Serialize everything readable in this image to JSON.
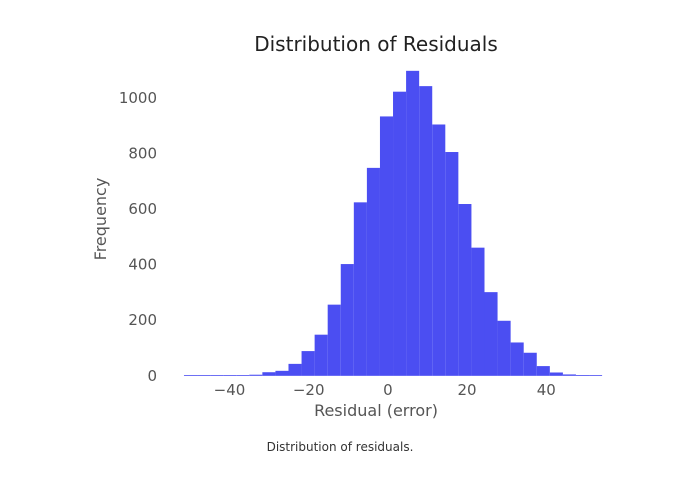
{
  "caption": "Distribution of residuals.",
  "colors": {
    "bar": "#4b4ef2",
    "text": "#444444",
    "axis_text": "#555555"
  },
  "chart_data": {
    "type": "bar",
    "title": "Distribution of Residuals",
    "xlabel": "Residual (error)",
    "ylabel": "Frequency",
    "grid": false,
    "xlim": [
      -52.5,
      46.5
    ],
    "ylim": [
      -15,
      1100
    ],
    "bin_width": 3.3,
    "bins_start": -51.5,
    "values": [
      1,
      2,
      2,
      1,
      2,
      4,
      13,
      18,
      43,
      89,
      148,
      256,
      402,
      624,
      748,
      933,
      1022,
      1097,
      1042,
      904,
      805,
      618,
      461,
      301,
      198,
      120,
      83,
      35,
      12,
      5,
      3,
      2
    ],
    "x_ticks": [
      -40,
      -20,
      0,
      20,
      40
    ],
    "x_tick_labels": [
      "−40",
      "−20",
      "0",
      "20",
      "40"
    ],
    "y_ticks": [
      0,
      200,
      400,
      600,
      800,
      1000
    ],
    "y_tick_labels": [
      "0",
      "200",
      "400",
      "600",
      "800",
      "1000"
    ]
  }
}
